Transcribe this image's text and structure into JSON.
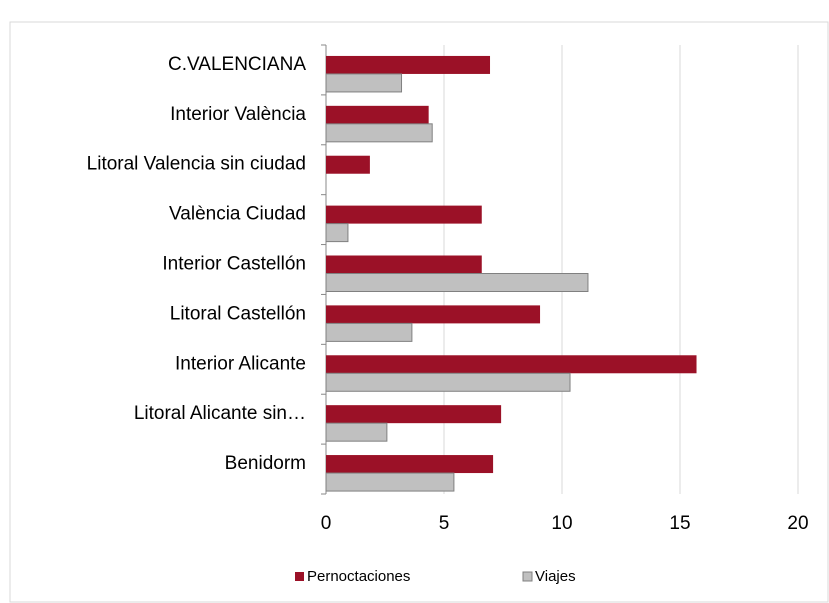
{
  "chart_data": {
    "type": "hbar",
    "categories": [
      "C.VALENCIANA",
      "Interior València",
      "Litoral Valencia sin ciudad",
      "València Ciudad",
      "Interior Castellón",
      "Litoral Castellón",
      "Interior Alicante",
      "Litoral Alicante sin…",
      "Benidorm"
    ],
    "series": [
      {
        "name": "Pernoctaciones",
        "color": "#9b1127",
        "values": [
          6.95,
          4.35,
          1.86,
          6.6,
          6.6,
          9.07,
          15.7,
          7.42,
          7.08
        ]
      },
      {
        "name": "Viajes",
        "color": "#c0c0c0",
        "values": [
          3.2,
          4.5,
          null,
          0.93,
          11.1,
          3.64,
          10.34,
          2.58,
          5.42
        ]
      }
    ],
    "xlim": [
      0,
      20
    ],
    "xticks": [
      0,
      5,
      10,
      15,
      20
    ],
    "grid": true,
    "legend": "bottom"
  }
}
